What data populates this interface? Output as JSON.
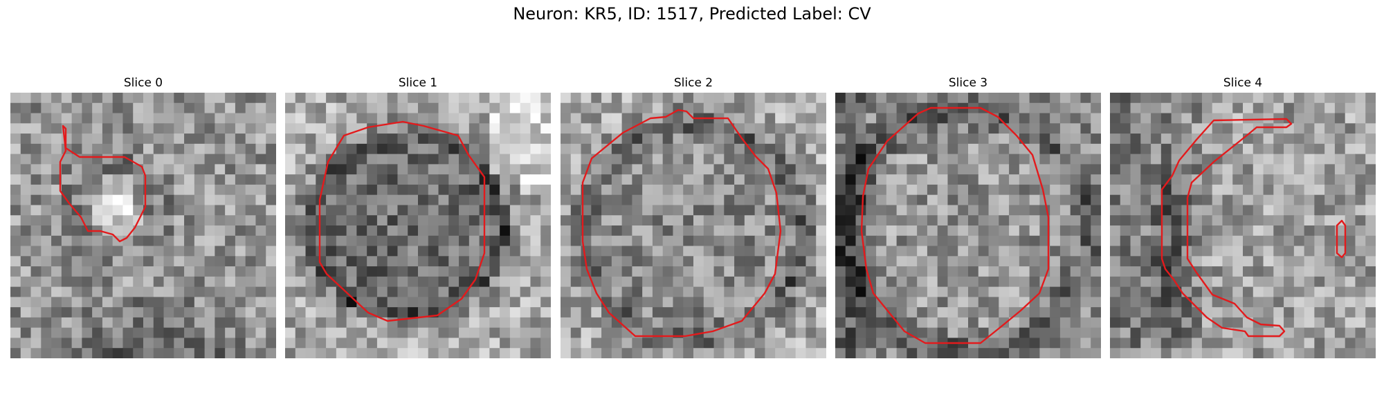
{
  "figure": {
    "title": "Neuron: KR5, ID: 1517, Predicted Label: CV"
  },
  "panels": [
    {
      "title": "Slice 0",
      "contour_color": "#e31a1c"
    },
    {
      "title": "Slice 1",
      "contour_color": "#e31a1c"
    },
    {
      "title": "Slice 2",
      "contour_color": "#e31a1c"
    },
    {
      "title": "Slice 3",
      "contour_color": "#e31a1c"
    },
    {
      "title": "Slice 4",
      "contour_color": "#e31a1c"
    }
  ]
}
